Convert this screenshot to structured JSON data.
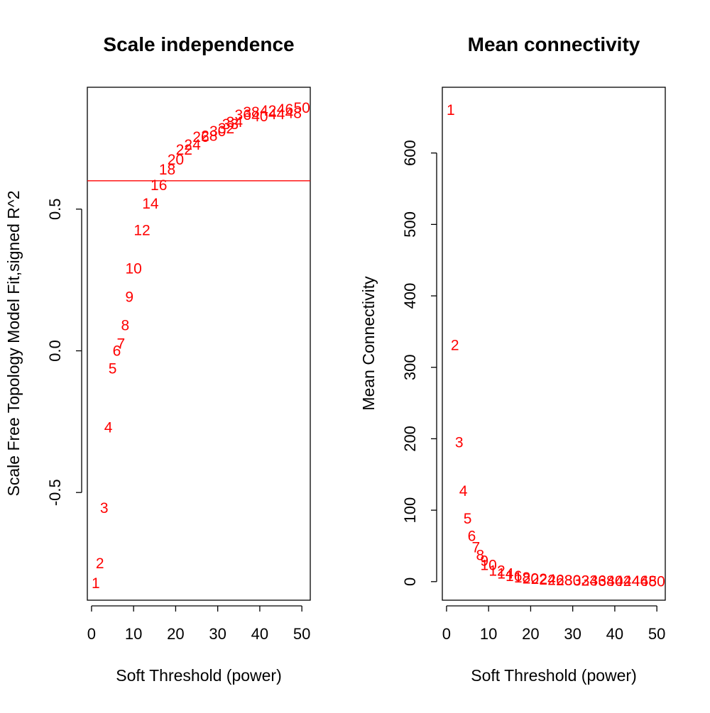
{
  "chart_data": [
    {
      "type": "scatter",
      "title": "Scale independence",
      "xlabel": "Soft Threshold (power)",
      "ylabel": "Scale Free Topology Model Fit,signed R^2",
      "xlim": [
        -1,
        52
      ],
      "ylim": [
        -0.88,
        0.93
      ],
      "xticks": [
        0,
        10,
        20,
        30,
        40,
        50
      ],
      "yticks": [
        -0.5,
        0.0,
        0.5
      ],
      "ytick_labels": [
        "-0.5",
        "0.0",
        "0.5"
      ],
      "grid": false,
      "point_color": "#ff0000",
      "reference_line": {
        "y": 0.6,
        "color": "#ff0000"
      },
      "points": [
        {
          "label": "1",
          "x": 1,
          "y": -0.82
        },
        {
          "label": "2",
          "x": 2,
          "y": -0.75
        },
        {
          "label": "3",
          "x": 3,
          "y": -0.555
        },
        {
          "label": "4",
          "x": 4,
          "y": -0.27
        },
        {
          "label": "5",
          "x": 5,
          "y": -0.062
        },
        {
          "label": "6",
          "x": 6,
          "y": 0.0
        },
        {
          "label": "7",
          "x": 7,
          "y": 0.025
        },
        {
          "label": "8",
          "x": 8,
          "y": 0.09
        },
        {
          "label": "9",
          "x": 9,
          "y": 0.19
        },
        {
          "label": "10",
          "x": 10,
          "y": 0.29
        },
        {
          "label": "12",
          "x": 12,
          "y": 0.425
        },
        {
          "label": "14",
          "x": 14,
          "y": 0.52
        },
        {
          "label": "16",
          "x": 16,
          "y": 0.585
        },
        {
          "label": "18",
          "x": 18,
          "y": 0.64
        },
        {
          "label": "20",
          "x": 20,
          "y": 0.675
        },
        {
          "label": "22",
          "x": 22,
          "y": 0.71
        },
        {
          "label": "24",
          "x": 24,
          "y": 0.727
        },
        {
          "label": "26",
          "x": 26,
          "y": 0.755
        },
        {
          "label": "28",
          "x": 28,
          "y": 0.758
        },
        {
          "label": "30",
          "x": 30,
          "y": 0.775
        },
        {
          "label": "32",
          "x": 32,
          "y": 0.785
        },
        {
          "label": "33",
          "x": 33,
          "y": 0.8
        },
        {
          "label": "34",
          "x": 34,
          "y": 0.807
        },
        {
          "label": "36",
          "x": 36,
          "y": 0.832
        },
        {
          "label": "38",
          "x": 38,
          "y": 0.843
        },
        {
          "label": "40",
          "x": 40,
          "y": 0.827
        },
        {
          "label": "42",
          "x": 42,
          "y": 0.847
        },
        {
          "label": "44",
          "x": 44,
          "y": 0.835
        },
        {
          "label": "46",
          "x": 46,
          "y": 0.852
        },
        {
          "label": "48",
          "x": 48,
          "y": 0.838
        },
        {
          "label": "50",
          "x": 50,
          "y": 0.857
        }
      ]
    },
    {
      "type": "scatter",
      "title": "Mean connectivity",
      "xlabel": "Soft Threshold (power)",
      "ylabel": "Mean Connectivity",
      "xlim": [
        -1,
        52
      ],
      "ylim": [
        -26,
        692
      ],
      "xticks": [
        0,
        10,
        20,
        30,
        40,
        50
      ],
      "yticks": [
        0,
        100,
        200,
        300,
        400,
        500,
        600
      ],
      "ytick_labels": [
        "0",
        "100",
        "200",
        "300",
        "400",
        "500",
        "600"
      ],
      "grid": false,
      "point_color": "#ff0000",
      "points": [
        {
          "label": "1",
          "x": 1,
          "y": 660
        },
        {
          "label": "2",
          "x": 2,
          "y": 331
        },
        {
          "label": "3",
          "x": 3,
          "y": 195
        },
        {
          "label": "4",
          "x": 4,
          "y": 127
        },
        {
          "label": "5",
          "x": 5,
          "y": 88
        },
        {
          "label": "6",
          "x": 6,
          "y": 64
        },
        {
          "label": "7",
          "x": 7,
          "y": 48
        },
        {
          "label": "8",
          "x": 8,
          "y": 37
        },
        {
          "label": "9",
          "x": 9,
          "y": 29
        },
        {
          "label": "10",
          "x": 10,
          "y": 23
        },
        {
          "label": "12",
          "x": 12,
          "y": 15
        },
        {
          "label": "14",
          "x": 14,
          "y": 11
        },
        {
          "label": "16",
          "x": 16,
          "y": 8
        },
        {
          "label": "18",
          "x": 18,
          "y": 6
        },
        {
          "label": "20",
          "x": 20,
          "y": 4.5
        },
        {
          "label": "22",
          "x": 22,
          "y": 3.6
        },
        {
          "label": "24",
          "x": 24,
          "y": 2.9
        },
        {
          "label": "26",
          "x": 26,
          "y": 2.4
        },
        {
          "label": "28",
          "x": 28,
          "y": 2.0
        },
        {
          "label": "30",
          "x": 30,
          "y": 1.7
        },
        {
          "label": "32",
          "x": 32,
          "y": 1.5
        },
        {
          "label": "34",
          "x": 34,
          "y": 1.3
        },
        {
          "label": "36",
          "x": 36,
          "y": 1.1
        },
        {
          "label": "38",
          "x": 38,
          "y": 1.0
        },
        {
          "label": "40",
          "x": 40,
          "y": 0.9
        },
        {
          "label": "42",
          "x": 42,
          "y": 0.8
        },
        {
          "label": "44",
          "x": 44,
          "y": 0.7
        },
        {
          "label": "46",
          "x": 46,
          "y": 0.65
        },
        {
          "label": "48",
          "x": 48,
          "y": 0.6
        },
        {
          "label": "50",
          "x": 50,
          "y": 0.5
        }
      ]
    }
  ]
}
